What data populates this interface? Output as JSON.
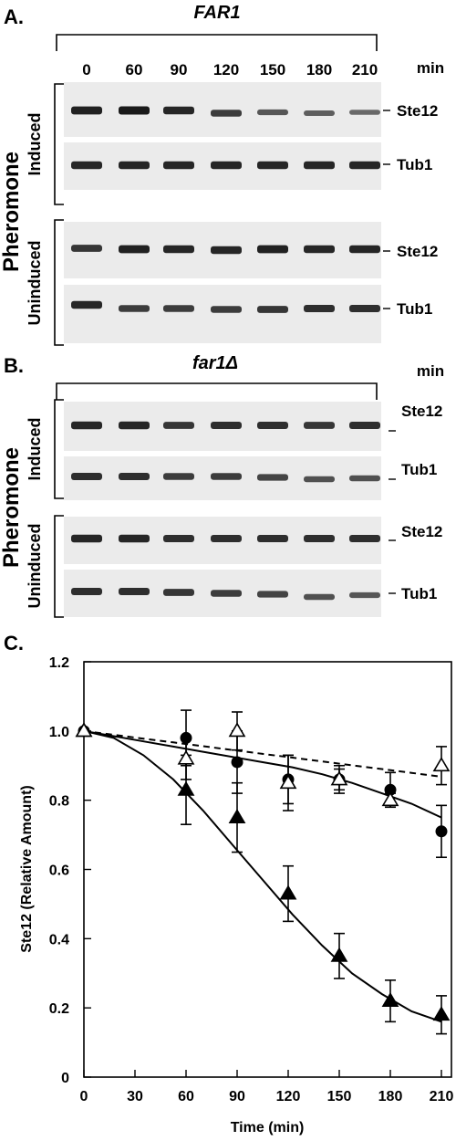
{
  "panel_a": {
    "panel_label": "A.",
    "strain": "FAR1",
    "timepoints": [
      "0",
      "60",
      "90",
      "120",
      "150",
      "180",
      "210"
    ],
    "unit": "min",
    "group_label": "Pheromone",
    "conditions": [
      "Induced",
      "Uninduced"
    ],
    "proteins": [
      "Ste12",
      "Tub1"
    ],
    "band_intensity": {
      "induced_ste12": [
        0.95,
        1.0,
        0.9,
        0.75,
        0.55,
        0.5,
        0.42
      ],
      "induced_tub1": [
        0.9,
        0.92,
        0.9,
        0.9,
        0.9,
        0.9,
        0.9
      ],
      "uninduced_ste12": [
        0.8,
        0.95,
        0.9,
        0.9,
        0.95,
        0.9,
        0.92
      ],
      "uninduced_tub1": [
        0.9,
        0.75,
        0.75,
        0.75,
        0.8,
        0.85,
        0.85
      ]
    }
  },
  "panel_b": {
    "panel_label": "B.",
    "strain": "far1Δ",
    "timepoints": [
      "0",
      "60",
      "90",
      "120",
      "150",
      "180",
      "210"
    ],
    "unit": "min",
    "group_label": "Pheromone",
    "conditions": [
      "Induced",
      "Uninduced"
    ],
    "proteins": [
      "Ste12",
      "Tub1"
    ],
    "band_intensity": {
      "induced_ste12": [
        0.9,
        0.9,
        0.8,
        0.85,
        0.85,
        0.8,
        0.85
      ],
      "induced_tub1": [
        0.85,
        0.85,
        0.75,
        0.75,
        0.7,
        0.6,
        0.6
      ],
      "uninduced_ste12": [
        0.9,
        0.9,
        0.85,
        0.85,
        0.85,
        0.85,
        0.85
      ],
      "uninduced_tub1": [
        0.85,
        0.85,
        0.8,
        0.75,
        0.7,
        0.6,
        0.55
      ]
    }
  },
  "panel_c": {
    "panel_label": "C."
  },
  "chart_data": {
    "type": "scatter",
    "title": "",
    "xlabel": "Time (min)",
    "ylabel": "Ste12 (Relative Amount)",
    "xlim": [
      0,
      210
    ],
    "ylim": [
      0,
      1.2
    ],
    "xticks": [
      0,
      30,
      60,
      90,
      120,
      150,
      180,
      210
    ],
    "yticks": [
      0,
      0.2,
      0.4,
      0.6,
      0.8,
      1.0,
      1.2
    ],
    "ytick_labels": [
      "0",
      "0.2",
      "0.4",
      "0.6",
      "0.8",
      "1.0",
      "1.2"
    ],
    "grid": false,
    "series": [
      {
        "marker": "filled-triangle",
        "x": [
          0,
          60,
          90,
          120,
          150,
          180,
          210
        ],
        "y": [
          1.0,
          0.83,
          0.75,
          0.53,
          0.35,
          0.22,
          0.18
        ],
        "err": [
          0.0,
          0.1,
          0.1,
          0.08,
          0.065,
          0.06,
          0.055
        ],
        "fit": "sigmoid-solid",
        "fit_y": [
          1.0,
          0.98,
          0.93,
          0.86,
          0.77,
          0.67,
          0.57,
          0.47,
          0.38,
          0.3,
          0.24,
          0.19,
          0.16
        ]
      },
      {
        "marker": "filled-circle",
        "x": [
          0,
          60,
          90,
          120,
          150,
          180,
          210
        ],
        "y": [
          1.0,
          0.98,
          0.91,
          0.86,
          0.86,
          0.83,
          0.71
        ],
        "err": [
          0.0,
          0.08,
          0.09,
          0.07,
          0.04,
          0.05,
          0.075
        ],
        "fit": "solid",
        "fit_y": [
          1.0,
          0.985,
          0.97,
          0.955,
          0.94,
          0.925,
          0.91,
          0.895,
          0.875,
          0.85,
          0.82,
          0.79,
          0.75
        ]
      },
      {
        "marker": "open-triangle",
        "x": [
          0,
          60,
          90,
          120,
          150,
          180,
          210
        ],
        "y": [
          1.0,
          0.92,
          1.0,
          0.85,
          0.86,
          0.8,
          0.9
        ],
        "err": [
          0.0,
          0.06,
          0.055,
          0.08,
          0.03,
          0.02,
          0.055
        ],
        "fit": "dashed",
        "fit_y": [
          1.0,
          0.989,
          0.978,
          0.967,
          0.956,
          0.945,
          0.934,
          0.923,
          0.912,
          0.901,
          0.89,
          0.879,
          0.868
        ]
      }
    ]
  }
}
